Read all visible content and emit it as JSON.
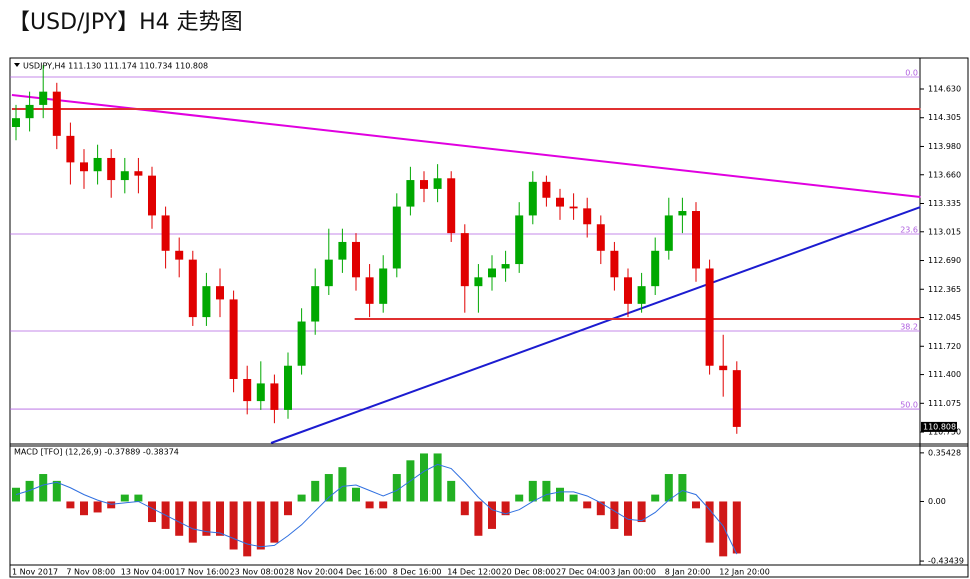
{
  "page_title": "【USD/JPY】H4 走势图",
  "chart_data": [
    {
      "type": "candlestick",
      "header": "USDJPY,H4  111.130 111.174 110.734 110.808",
      "categories": [
        "1 Nov 2017",
        null,
        null,
        null,
        "7 Nov 08:00",
        null,
        null,
        null,
        "13 Nov 04:00",
        null,
        null,
        null,
        "17 Nov 16:00",
        null,
        null,
        null,
        "23 Nov 08:00",
        null,
        null,
        null,
        "28 Nov 20:00",
        null,
        null,
        null,
        "4 Dec 16:00",
        null,
        null,
        null,
        "8 Dec 16:00",
        null,
        null,
        null,
        "14 Dec 12:00",
        null,
        null,
        null,
        "20 Dec 08:00",
        null,
        null,
        null,
        "27 Dec 04:00",
        null,
        null,
        null,
        "3 Jan 00:00",
        null,
        null,
        null,
        "8 Jan 20:00",
        null,
        null,
        null,
        "12 Jan 20:00",
        null
      ],
      "open": [
        114.2,
        114.3,
        114.45,
        114.6,
        114.1,
        113.8,
        113.7,
        113.85,
        113.6,
        113.7,
        113.65,
        113.2,
        112.8,
        112.7,
        112.05,
        112.4,
        112.25,
        111.35,
        111.1,
        111.3,
        111.0,
        111.5,
        112.0,
        112.4,
        112.7,
        112.9,
        112.5,
        112.2,
        112.6,
        113.3,
        113.6,
        113.5,
        113.62,
        113.0,
        112.4,
        112.5,
        112.6,
        112.65,
        113.2,
        113.58,
        113.4,
        113.3,
        113.28,
        113.1,
        112.8,
        112.5,
        112.2,
        112.4,
        112.8,
        113.2,
        113.25,
        112.6,
        111.5,
        111.45
      ],
      "high": [
        114.45,
        114.6,
        114.9,
        114.7,
        114.25,
        113.95,
        114.0,
        113.95,
        113.85,
        113.85,
        113.75,
        113.3,
        112.95,
        112.8,
        112.55,
        112.6,
        112.35,
        111.5,
        111.55,
        111.4,
        111.65,
        112.15,
        112.6,
        113.05,
        113.05,
        113.0,
        112.65,
        112.75,
        113.45,
        113.75,
        113.7,
        113.78,
        113.7,
        113.1,
        112.65,
        112.75,
        112.8,
        113.35,
        113.7,
        113.65,
        113.5,
        113.45,
        113.4,
        113.2,
        112.9,
        112.6,
        112.55,
        112.95,
        113.4,
        113.4,
        113.35,
        112.7,
        111.85,
        111.55
      ],
      "low": [
        114.05,
        114.15,
        114.3,
        113.95,
        113.55,
        113.5,
        113.55,
        113.4,
        113.45,
        113.45,
        113.05,
        112.6,
        112.5,
        111.95,
        111.95,
        112.05,
        111.2,
        110.95,
        111.0,
        110.85,
        110.9,
        111.4,
        111.85,
        112.3,
        112.55,
        112.35,
        112.05,
        112.1,
        112.5,
        113.2,
        113.35,
        113.35,
        112.9,
        112.1,
        112.1,
        112.35,
        112.45,
        112.55,
        113.1,
        113.3,
        113.15,
        113.15,
        112.95,
        112.65,
        112.35,
        112.05,
        112.1,
        112.3,
        112.7,
        113.0,
        112.45,
        111.4,
        111.15,
        110.73
      ],
      "close": [
        114.3,
        114.45,
        114.6,
        114.1,
        113.8,
        113.7,
        113.85,
        113.6,
        113.7,
        113.65,
        113.2,
        112.8,
        112.7,
        112.05,
        112.4,
        112.25,
        111.35,
        111.1,
        111.3,
        111.0,
        111.5,
        112.0,
        112.4,
        112.7,
        112.9,
        112.5,
        112.2,
        112.6,
        113.3,
        113.6,
        113.5,
        113.62,
        113.0,
        112.4,
        112.5,
        112.6,
        112.65,
        113.2,
        113.58,
        113.4,
        113.3,
        113.28,
        113.1,
        112.8,
        112.5,
        112.2,
        112.4,
        112.8,
        113.2,
        113.25,
        112.6,
        111.5,
        111.45,
        110.808
      ],
      "up_color": "#00a800",
      "down_color": "#e00000",
      "ylim": [
        110.626,
        114.958
      ],
      "yticks": [
        {
          "value": 114.63,
          "label": "114.630"
        },
        {
          "value": 114.305,
          "label": "114.305"
        },
        {
          "value": 113.98,
          "label": "113.980"
        },
        {
          "value": 113.66,
          "label": "113.660"
        },
        {
          "value": 113.335,
          "label": "113.335"
        },
        {
          "value": 113.015,
          "label": "113.015"
        },
        {
          "value": 112.69,
          "label": "112.690"
        },
        {
          "value": 112.365,
          "label": "112.365"
        },
        {
          "value": 112.045,
          "label": "112.045"
        },
        {
          "value": 111.72,
          "label": "111.720"
        },
        {
          "value": 111.4,
          "label": "111.400"
        },
        {
          "value": 111.075,
          "label": "111.075"
        },
        {
          "value": 110.75,
          "label": "110.750"
        }
      ],
      "last_price": 110.808,
      "levels": [
        {
          "value": 114.766,
          "label": "0.0"
        },
        {
          "value": 112.99,
          "label": "23.6"
        },
        {
          "value": 111.893,
          "label": "38.2"
        },
        {
          "value": 111.01,
          "label": "50.0"
        }
      ],
      "level_color": "#b060e0",
      "lines": [
        {
          "color": "#e000e0",
          "x": [
            -0.3,
            66.5
          ],
          "y": [
            114.562,
            113.408
          ]
        },
        {
          "color": "#1c1cd0",
          "x": [
            18.75,
            66.5
          ],
          "y": [
            110.626,
            113.295
          ]
        },
        {
          "color": "#e03030",
          "x": [
            -0.3,
            66.5
          ],
          "y": [
            114.404,
            114.404
          ]
        },
        {
          "color": "#e03030",
          "x": [
            24.9,
            66.5
          ],
          "y": [
            112.028,
            112.028
          ]
        }
      ]
    },
    {
      "type": "macd",
      "header": "MACD [TFO] (12,26,9) -0.37889 -0.38374",
      "ylim": [
        -0.463,
        0.397
      ],
      "yticks": [
        0.35428,
        {
          "value": 0,
          "label": "0.00"
        },
        -0.43439
      ],
      "histogram": [
        0.1,
        0.15,
        0.2,
        0.15,
        -0.05,
        -0.1,
        -0.08,
        -0.05,
        0.05,
        0.05,
        -0.15,
        -0.2,
        -0.25,
        -0.3,
        -0.25,
        -0.25,
        -0.35,
        -0.4,
        -0.35,
        -0.3,
        -0.1,
        0.05,
        0.15,
        0.2,
        0.25,
        0.1,
        -0.05,
        -0.05,
        0.2,
        0.3,
        0.35,
        0.35,
        0.15,
        -0.1,
        -0.25,
        -0.2,
        -0.1,
        0.05,
        0.15,
        0.15,
        0.1,
        0.05,
        -0.05,
        -0.1,
        -0.2,
        -0.25,
        -0.15,
        0.05,
        0.2,
        0.2,
        -0.05,
        -0.3,
        -0.4,
        -0.37889
      ],
      "signal": [
        0.05,
        0.08,
        0.12,
        0.14,
        0.1,
        0.05,
        0.01,
        -0.02,
        -0.01,
        0.0,
        -0.05,
        -0.1,
        -0.15,
        -0.2,
        -0.22,
        -0.23,
        -0.27,
        -0.31,
        -0.33,
        -0.32,
        -0.25,
        -0.17,
        -0.07,
        0.03,
        0.11,
        0.12,
        0.08,
        0.04,
        0.08,
        0.15,
        0.22,
        0.27,
        0.24,
        0.14,
        0.03,
        -0.06,
        -0.09,
        -0.06,
        0.0,
        0.05,
        0.07,
        0.07,
        0.04,
        -0.01,
        -0.07,
        -0.13,
        -0.14,
        -0.08,
        0.01,
        0.08,
        0.05,
        -0.06,
        -0.18,
        -0.38374
      ],
      "up_color": "#22b022",
      "down_color": "#d01818",
      "signal_color": "#3070e0"
    }
  ]
}
